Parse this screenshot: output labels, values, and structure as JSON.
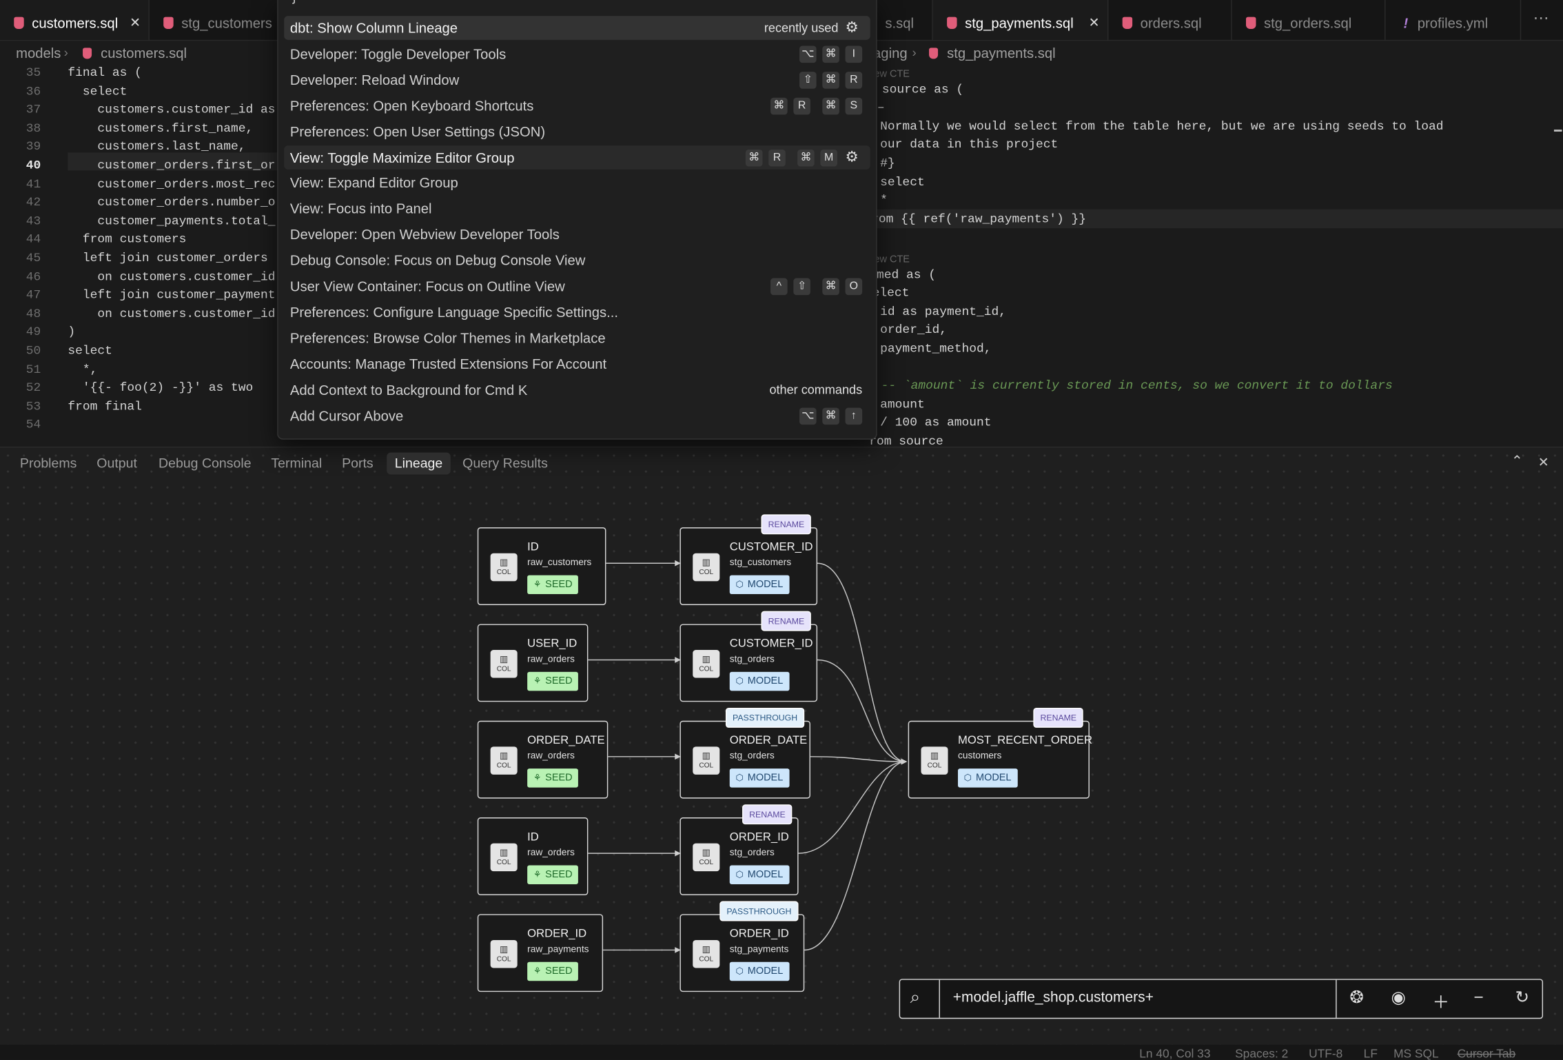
{
  "editor_left": {
    "tabs": [
      "customers.sql",
      "stg_customers"
    ],
    "breadcrumb": [
      "models",
      "customers.sql"
    ],
    "line_numbers": [
      "35",
      "36",
      "37",
      "38",
      "39",
      "40",
      "41",
      "42",
      "43",
      "44",
      "45",
      "46",
      "47",
      "48",
      "49",
      "50",
      "51",
      "52",
      "53",
      "54"
    ],
    "lines": [
      "final as (",
      "  select",
      "    customers.customer_id as",
      "    customers.first_name,",
      "    customers.last_name,",
      "    customer_orders.first_or",
      "    customer_orders.most_rec",
      "    customer_orders.number_o",
      "    customer_payments.total_",
      "  from customers",
      "  left join customer_orders",
      "    on customers.customer_id",
      "  left join customer_payment",
      "    on customers.customer_id",
      ")",
      "select",
      "  *,",
      "  '{{- foo(2) -}}' as two",
      "from final"
    ]
  },
  "editor_right": {
    "tabs": [
      "s.sql",
      "stg_payments.sql",
      "orders.sql",
      "stg_orders.sql",
      "profiles.yml"
    ],
    "breadcrumb": [
      "aging",
      "stg_payments.sql"
    ],
    "lines": [
      "ew CTE",
      "n source as (",
      "–",
      "Normally we would select from the table here, but we are using seeds to load",
      "our data in this project",
      "#}",
      "select",
      "*",
      "rom {{ ref('raw_payments') }}",
      null,
      "ew CTE",
      "amed as (",
      "elect",
      "id as payment_id,",
      "order_id,",
      "payment_method,",
      null,
      "-- `amount` is currently stored in cents, so we convert it to dollars",
      "amount",
      "/ 100 as amount",
      "rom source"
    ]
  },
  "command_palette": {
    "items": [
      {
        "label": "dbt: Show Column Lineage",
        "hint": "recently used"
      },
      {
        "label": "Developer: Toggle Developer Tools",
        "keys": [
          "⌥",
          "⌘",
          "I"
        ]
      },
      {
        "label": "Developer: Reload Window",
        "keys": [
          "⇧",
          "⌘",
          "R"
        ]
      },
      {
        "label": "Preferences: Open Keyboard Shortcuts",
        "keys": [
          "⌘",
          "R",
          "⌘",
          "S"
        ]
      },
      {
        "label": "Preferences: Open User Settings (JSON)"
      },
      {
        "label": "View: Toggle Maximize Editor Group",
        "keys": [
          "⌘",
          "R",
          "⌘",
          "M"
        ]
      },
      {
        "label": "View: Expand Editor Group"
      },
      {
        "label": "View: Focus into Panel"
      },
      {
        "label": "Developer: Open Webview Developer Tools"
      },
      {
        "label": "Debug Console: Focus on Debug Console View"
      },
      {
        "label": "User View Container: Focus on Outline View",
        "keys": [
          "^",
          "⇧",
          "⌘",
          "O"
        ]
      },
      {
        "label": "Preferences: Configure Language Specific Settings..."
      },
      {
        "label": "Preferences: Browse Color Themes in Marketplace"
      },
      {
        "label": "Accounts: Manage Trusted Extensions For Account"
      },
      {
        "label": "Add Context to Background for Cmd K",
        "hint": "other commands"
      },
      {
        "label": "Add Cursor Above",
        "keys": [
          "⌥",
          "⌘",
          "↑"
        ]
      }
    ]
  },
  "panel": {
    "tabs": [
      "Problems",
      "Output",
      "Debug Console",
      "Terminal",
      "Ports",
      "Lineage",
      "Query Results"
    ]
  },
  "lineage": {
    "icon_label": "COL",
    "nodes": [
      {
        "column": "ID",
        "model": "raw_customers",
        "kind": "SEED"
      },
      {
        "column": "USER_ID",
        "model": "raw_orders",
        "kind": "SEED"
      },
      {
        "column": "ORDER_DATE",
        "model": "raw_orders",
        "kind": "SEED"
      },
      {
        "column": "ID",
        "model": "raw_orders",
        "kind": "SEED"
      },
      {
        "column": "ORDER_ID",
        "model": "raw_payments",
        "kind": "SEED"
      },
      {
        "column": "CUSTOMER_ID",
        "model": "stg_customers",
        "kind": "MODEL",
        "badge": "RENAME"
      },
      {
        "column": "CUSTOMER_ID",
        "model": "stg_orders",
        "kind": "MODEL",
        "badge": "RENAME"
      },
      {
        "column": "ORDER_DATE",
        "model": "stg_orders",
        "kind": "MODEL",
        "badge": "PASSTHROUGH"
      },
      {
        "column": "ORDER_ID",
        "model": "stg_orders",
        "kind": "MODEL",
        "badge": "RENAME"
      },
      {
        "column": "ORDER_ID",
        "model": "stg_payments",
        "kind": "MODEL",
        "badge": "PASSTHROUGH"
      },
      {
        "column": "MOST_RECENT_ORDER",
        "model": "customers",
        "kind": "MODEL",
        "badge": "RENAME"
      }
    ],
    "search": "+model.jaffle_shop.customers+"
  },
  "status_bar": [
    "Ln 40, Col 33",
    "Spaces: 2",
    "UTF-8",
    "LF",
    "MS SQL",
    "Cursor Tab"
  ]
}
